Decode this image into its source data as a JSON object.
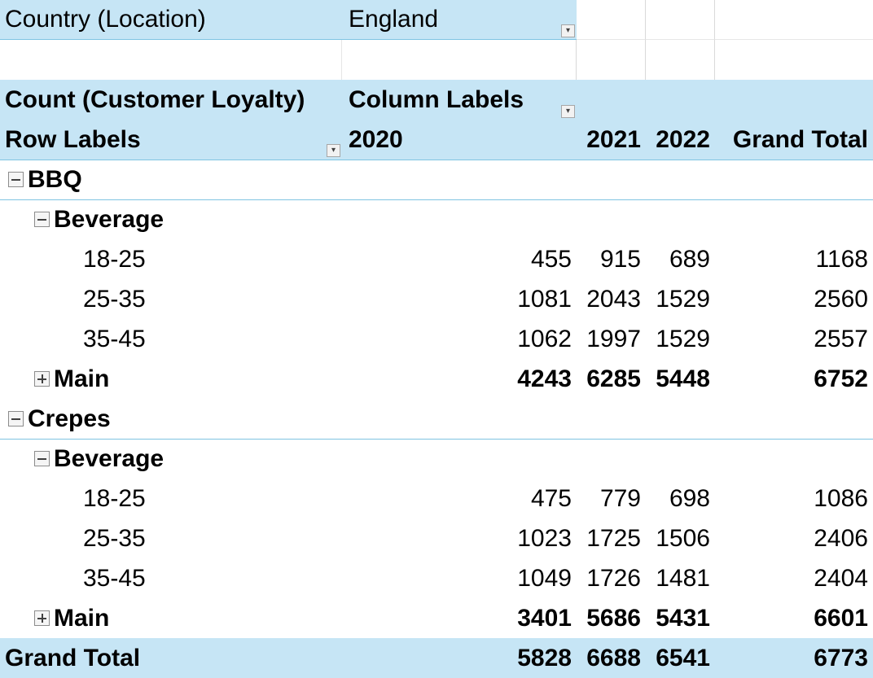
{
  "filter": {
    "field_label": "Country (Location)",
    "value": "England"
  },
  "header": {
    "value_label": "Count (Customer Loyalty)",
    "column_labels": "Column Labels",
    "row_labels": "Row Labels",
    "years": [
      "2020",
      "2021",
      "2022"
    ],
    "grand_total": "Grand Total"
  },
  "groups": [
    {
      "name": "BBQ",
      "sub": {
        "name": "Beverage",
        "rows": [
          {
            "label": "18-25",
            "v": [
              "455",
              "915",
              "689"
            ],
            "total": "1168"
          },
          {
            "label": "25-35",
            "v": [
              "1081",
              "2043",
              "1529"
            ],
            "total": "2560"
          },
          {
            "label": "35-45",
            "v": [
              "1062",
              "1997",
              "1529"
            ],
            "total": "2557"
          }
        ]
      },
      "main": {
        "label": "Main",
        "v": [
          "4243",
          "6285",
          "5448"
        ],
        "total": "6752"
      }
    },
    {
      "name": "Crepes",
      "sub": {
        "name": "Beverage",
        "rows": [
          {
            "label": "18-25",
            "v": [
              "475",
              "779",
              "698"
            ],
            "total": "1086"
          },
          {
            "label": "25-35",
            "v": [
              "1023",
              "1725",
              "1506"
            ],
            "total": "2406"
          },
          {
            "label": "35-45",
            "v": [
              "1049",
              "1726",
              "1481"
            ],
            "total": "2404"
          }
        ]
      },
      "main": {
        "label": "Main",
        "v": [
          "3401",
          "5686",
          "5431"
        ],
        "total": "6601"
      }
    }
  ],
  "grand_total_row": {
    "label": "Grand Total",
    "v": [
      "5828",
      "6688",
      "6541"
    ],
    "total": "6773"
  },
  "colors": {
    "header_fill": "#c6e5f5",
    "line": "#7fc4e2",
    "grid": "#d9d9d9"
  }
}
